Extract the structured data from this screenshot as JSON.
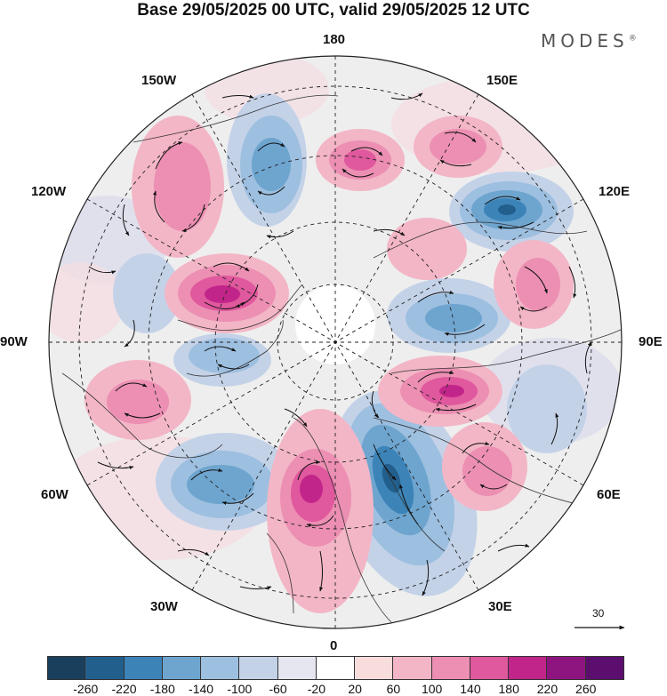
{
  "title": "Base 29/05/2025 00 UTC, valid 29/05/2025 12 UTC",
  "brand": "MODES",
  "longitude_labels": {
    "top": "180",
    "bottom": "0",
    "left": "90W",
    "right": "90E",
    "upper_left_1": "150W",
    "upper_left_2": "120W",
    "upper_right_1": "150E",
    "upper_right_2": "120E",
    "lower_left_1": "60W",
    "lower_left_2": "30W",
    "lower_right_1": "60E",
    "lower_right_2": "30E"
  },
  "reference_vector": "30",
  "colorbar": {
    "colors": [
      "#1a3f5c",
      "#235f8c",
      "#3c84b8",
      "#6ea5cf",
      "#9dbfe0",
      "#c4d2e8",
      "#e6e6f0",
      "#ffffff",
      "#f9dcdc",
      "#f3b6c6",
      "#ec8fb3",
      "#e0589d",
      "#c2258a",
      "#8e1580",
      "#5b0e6e"
    ],
    "tick_labels": [
      "-260",
      "-220",
      "-180",
      "-140",
      "-100",
      "-60",
      "-20",
      "20",
      "60",
      "100",
      "140",
      "180",
      "220",
      "260"
    ]
  }
}
